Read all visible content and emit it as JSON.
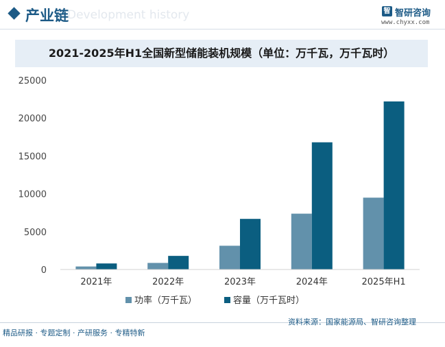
{
  "header": {
    "section_title": "产业链",
    "watermark_en": "Development history",
    "brand_name": "智研咨询",
    "brand_url": "www.chyxx.com"
  },
  "chart_data": {
    "type": "bar",
    "title": "2021-2025年H1全国新型储能装机规模（单位：万千瓦，万千瓦时）",
    "categories": [
      "2021年",
      "2022年",
      "2023年",
      "2024年",
      "2025年H1"
    ],
    "series": [
      {
        "name": "功率（万千瓦）",
        "color": "#6291ab",
        "values": [
          400,
          870,
          3139,
          7376,
          9491
        ]
      },
      {
        "name": "容量（万千瓦时）",
        "color": "#0b5e80",
        "values": [
          800,
          1800,
          6687,
          16800,
          22200
        ]
      }
    ],
    "ylim": [
      0,
      25000
    ],
    "yticks": [
      "0",
      "5000",
      "10000",
      "15000",
      "20000",
      "25000"
    ],
    "grid": false,
    "legend_position": "bottom-center"
  },
  "footer": {
    "source": "资料来源：国家能源局、智研咨询整理",
    "slogan": "精品研报 · 专题定制 · 产研服务 · 专精特新"
  }
}
